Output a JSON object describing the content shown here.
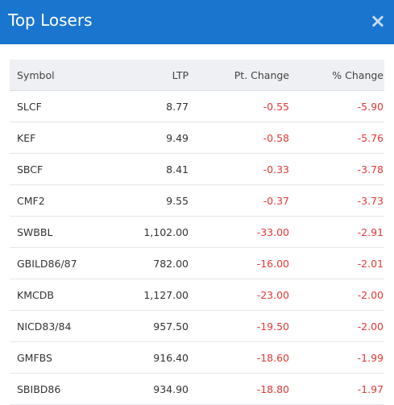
{
  "header": {
    "title": "Top Losers",
    "close": "×"
  },
  "table": {
    "headers": [
      "Symbol",
      "LTP",
      "Pt. Change",
      "% Change"
    ],
    "rows": [
      [
        "SLCF",
        "8.77",
        "-0.55",
        "-5.90"
      ],
      [
        "KEF",
        "9.49",
        "-0.58",
        "-5.76"
      ],
      [
        "SBCF",
        "8.41",
        "-0.33",
        "-3.78"
      ],
      [
        "CMF2",
        "9.55",
        "-0.37",
        "-3.73"
      ],
      [
        "SWBBL",
        "1,102.00",
        "-33.00",
        "-2.91"
      ],
      [
        "GBILD86/87",
        "782.00",
        "-16.00",
        "-2.01"
      ],
      [
        "KMCDB",
        "1,127.00",
        "-23.00",
        "-2.00"
      ],
      [
        "NICD83/84",
        "957.50",
        "-19.50",
        "-2.00"
      ],
      [
        "GMFBS",
        "916.40",
        "-18.60",
        "-1.99"
      ],
      [
        "SBIBD86",
        "934.90",
        "-18.80",
        "-1.97"
      ]
    ]
  }
}
